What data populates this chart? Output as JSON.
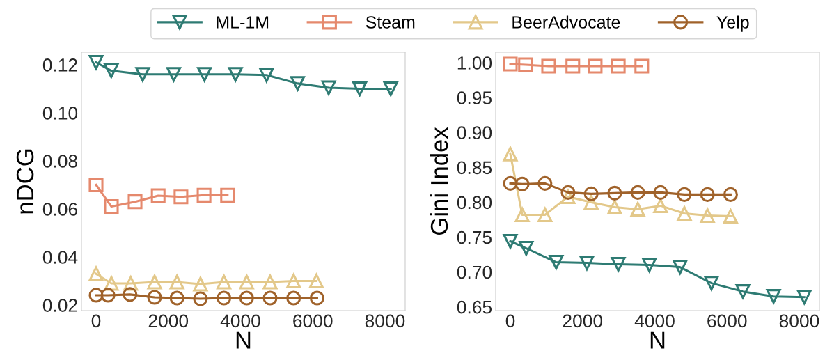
{
  "chart_data": [
    {
      "type": "line",
      "xlabel": "N",
      "ylabel": "nDCG",
      "xlim": [
        -405,
        8560
      ],
      "xticks": [
        0,
        2000,
        4000,
        6000,
        8000
      ],
      "ylim": [
        0.0177,
        0.1252
      ],
      "yticks": [
        {
          "value": 0.02,
          "label": "0.02"
        },
        {
          "value": 0.04,
          "label": "0.04"
        },
        {
          "value": 0.06,
          "label": "0.06"
        },
        {
          "value": 0.08,
          "label": "0.08"
        },
        {
          "value": 0.1,
          "label": "0.10"
        },
        {
          "value": 0.12,
          "label": "0.12"
        }
      ],
      "grid": false,
      "legend": "top",
      "series": [
        {
          "name": "ML-1M",
          "color": "#2e7b73",
          "marker": "triangle_down",
          "x": [
            0,
            420,
            1290,
            2150,
            3000,
            3860,
            4720,
            5580,
            6440,
            7300,
            8160
          ],
          "values": [
            0.121,
            0.1175,
            0.116,
            0.116,
            0.116,
            0.116,
            0.1157,
            0.1122,
            0.1104,
            0.11,
            0.11
          ]
        },
        {
          "name": "Steam",
          "color": "#e5896d",
          "marker": "square",
          "x": [
            0,
            424,
            1080,
            1720,
            2350,
            2990,
            3640
          ],
          "values": [
            0.07,
            0.061,
            0.063,
            0.0655,
            0.065,
            0.0657,
            0.0657
          ]
        },
        {
          "name": "BeerAdvocate",
          "color": "#e3c88a",
          "marker": "triangle",
          "x": [
            0,
            424,
            960,
            1620,
            2240,
            2890,
            3540,
            4170,
            4820,
            5470,
            6100
          ],
          "values": [
            0.033,
            0.029,
            0.029,
            0.0296,
            0.0296,
            0.0287,
            0.0296,
            0.0296,
            0.0296,
            0.03,
            0.03
          ]
        },
        {
          "name": "Yelp",
          "color": "#a0622a",
          "marker": "circle",
          "x": [
            0,
            330,
            940,
            1620,
            2240,
            2890,
            3540,
            4170,
            4820,
            5470,
            6120
          ],
          "values": [
            0.0241,
            0.0241,
            0.0244,
            0.0232,
            0.0229,
            0.0226,
            0.0229,
            0.0229,
            0.0229,
            0.0229,
            0.0229
          ]
        }
      ]
    },
    {
      "type": "line",
      "xlabel": "N",
      "ylabel": "Gini Index",
      "xlim": [
        -405,
        8560
      ],
      "xticks": [
        0,
        2000,
        4000,
        6000,
        8000
      ],
      "ylim": [
        0.6447,
        1.015
      ],
      "yticks": [
        {
          "value": 0.65,
          "label": "0.65"
        },
        {
          "value": 0.7,
          "label": "0.70"
        },
        {
          "value": 0.75,
          "label": "0.75"
        },
        {
          "value": 0.8,
          "label": "0.80"
        },
        {
          "value": 0.85,
          "label": "0.85"
        },
        {
          "value": 0.9,
          "label": "0.90"
        },
        {
          "value": 0.95,
          "label": "0.95"
        },
        {
          "value": 1.0,
          "label": "1.00"
        }
      ],
      "grid": false,
      "series": [
        {
          "color": "#2e7b73",
          "marker": "triangle_down",
          "x": [
            0,
            440,
            1270,
            2120,
            2990,
            3850,
            4700,
            5570,
            6440,
            7290,
            8140
          ],
          "values": [
            0.744,
            0.734,
            0.714,
            0.713,
            0.711,
            0.71,
            0.707,
            0.684,
            0.672,
            0.665,
            0.664
          ]
        },
        {
          "color": "#e5896d",
          "marker": "square",
          "x": [
            0,
            420,
            1060,
            1730,
            2350,
            2990,
            3640
          ],
          "values": [
            0.998,
            0.997,
            0.995,
            0.995,
            0.995,
            0.995,
            0.995
          ]
        },
        {
          "color": "#e3c88a",
          "marker": "triangle",
          "x": [
            0,
            330,
            960,
            1600,
            2240,
            2890,
            3530,
            4160,
            4820,
            5460,
            6100
          ],
          "values": [
            0.869,
            0.782,
            0.782,
            0.808,
            0.8,
            0.793,
            0.79,
            0.795,
            0.784,
            0.781,
            0.78
          ]
        },
        {
          "color": "#a0622a",
          "marker": "circle",
          "x": [
            0,
            330,
            960,
            1600,
            2240,
            2890,
            3530,
            4160,
            4820,
            5460,
            6100
          ],
          "values": [
            0.827,
            0.826,
            0.827,
            0.814,
            0.812,
            0.813,
            0.814,
            0.814,
            0.811,
            0.811,
            0.811
          ]
        }
      ]
    }
  ]
}
